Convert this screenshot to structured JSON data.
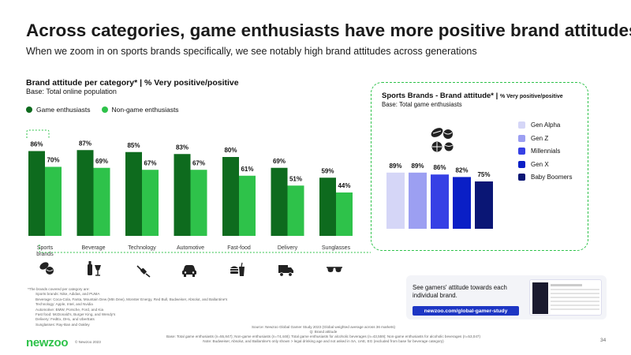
{
  "header": {
    "title": "Across categories, game enthusiasts have more positive brand attitudes",
    "subtitle": "When we zoom in on sports brands specifically, we see notably high brand attitudes across generations"
  },
  "left_chart": {
    "title": "Brand attitude per category* | % Very positive/positive",
    "base": "Base: Total online population",
    "legend": [
      "Game enthusiasts",
      "Non-game enthusiasts"
    ]
  },
  "right_chart": {
    "title": "Sports Brands - Brand attitude* |",
    "title_small": "% Very positive/positive",
    "base": "Base: Total game enthusiasts"
  },
  "chart_data": [
    {
      "type": "bar",
      "title": "Brand attitude per category* | % Very positive/positive",
      "categories": [
        "Sports brands",
        "Beverage",
        "Technology",
        "Automotive",
        "Fast-food",
        "Delivery",
        "Sunglasses"
      ],
      "series": [
        {
          "name": "Game enthusiasts",
          "color": "#0e6b1e",
          "values": [
            86,
            87,
            85,
            83,
            80,
            69,
            59
          ]
        },
        {
          "name": "Non-game enthusiasts",
          "color": "#2ec24a",
          "values": [
            70,
            69,
            67,
            67,
            61,
            51,
            44
          ]
        }
      ],
      "value_suffix": "%",
      "ylim": [
        0,
        100
      ],
      "grid": false,
      "legend_position": "top-left"
    },
    {
      "type": "bar",
      "title": "Sports Brands - Brand attitude* | % Very positive/positive",
      "categories": [
        "Gen Alpha",
        "Gen Z",
        "Millennials",
        "Gen X",
        "Baby Boomers"
      ],
      "series": [
        {
          "name": "Sports brands",
          "values": [
            89,
            89,
            86,
            82,
            75
          ]
        }
      ],
      "colors": [
        "#d5d6f7",
        "#9c9ff2",
        "#3640e5",
        "#0a1fc6",
        "#0a1675"
      ],
      "value_suffix": "%",
      "ylim": [
        0,
        100
      ],
      "grid": false,
      "legend_position": "right"
    }
  ],
  "icons": [
    "sports-icon",
    "beverage-icon",
    "technology-icon",
    "automotive-icon",
    "fast-food-icon",
    "delivery-icon",
    "sunglasses-icon"
  ],
  "footnote": {
    "heading": "*The brands covered per category are:",
    "items": [
      "Sports brands: Nike, Adidas, and PUMA",
      "Beverage: Coca-Cola, Fanta, Mountain Dew (Mtn Dew), Monster Energy, Red Bull, Budweiser, Absolut, and Ballantine's",
      "Technology: Apple, Intel, and Nvidia",
      "Automotive: BMW, Porsche, Ford, and Kia",
      "Fast food: McDonald's, Burger King, and Wendy's",
      "Delivery: FedEx, DHL, and UberEats",
      "Sunglasses: Ray-Ban and Oakley"
    ]
  },
  "source": {
    "line1": "Source: Newzoo Global Gamer Study 2023 (Global weighted average across 36 markets)",
    "line2": "Q: Brand attitude",
    "line3": "Base: Total game enthusiasts (n=55,847); Non-game enthusiasts (n=74,448); Total game enthusiasts for alcoholic beverages (n=43,559); Non-game enthusiasts for alcoholic beverages (n=53,047)",
    "line4": "Note: Budweiser, Absolut, and Ballantine's only shown > legal drinking age and not asked in SA, UAE, EG (excluded from base for beverage category)"
  },
  "promo": {
    "text": "See gamers' attitude towards each individual brand.",
    "link": "newzoo.com/global-gamer-study"
  },
  "footer": {
    "logo": "newzoo",
    "copyright": "© Newzoo 2023",
    "page": "34"
  },
  "colors": {
    "brand_green": "#2ec24a",
    "dark_green": "#0e6b1e",
    "promo_blue": "#1d36c4"
  }
}
